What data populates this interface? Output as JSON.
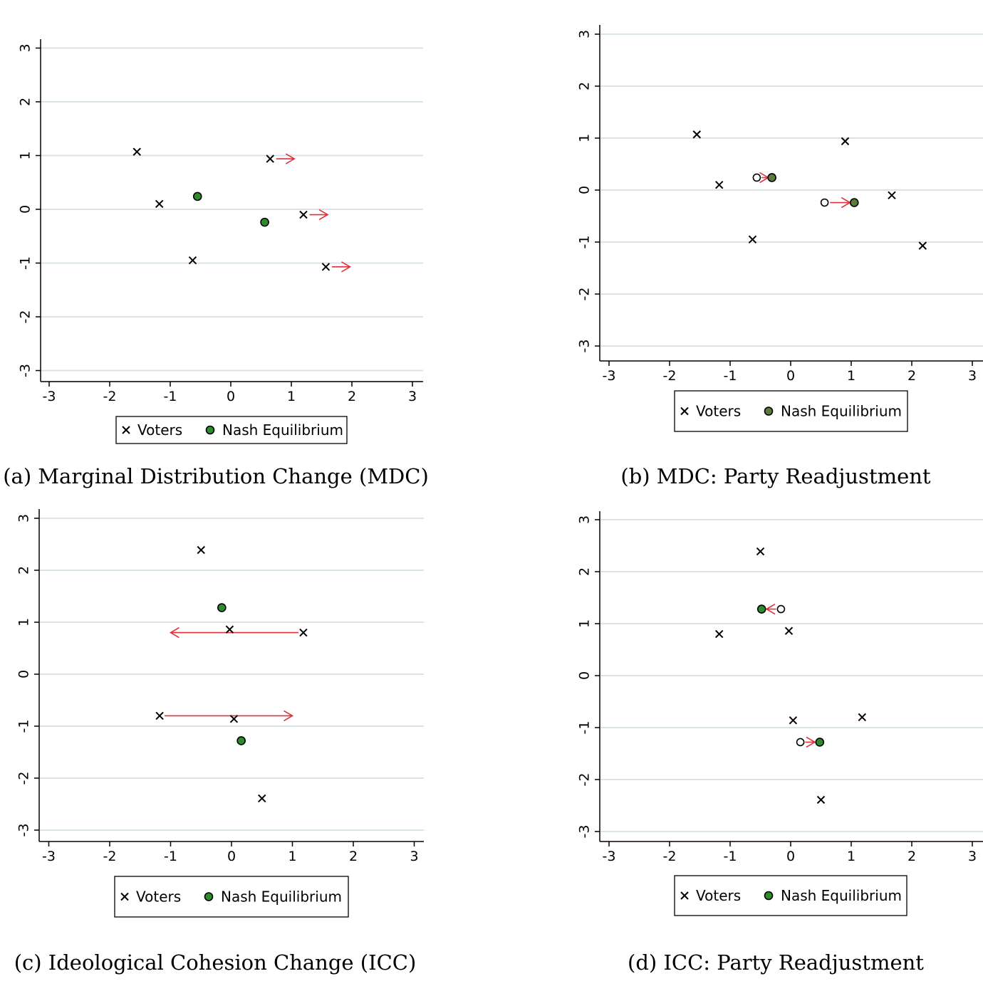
{
  "chart_data": [
    {
      "type": "scatter",
      "caption": "(a) Marginal Distribution Change (MDC)",
      "xlim": [
        -3,
        3
      ],
      "ylim": [
        -3,
        3
      ],
      "xticks": [
        -3,
        -2,
        -1,
        0,
        1,
        2,
        3
      ],
      "yticks": [
        -3,
        -2,
        -1,
        0,
        1,
        2,
        3
      ],
      "grid": "horizontal",
      "legend_position": "bottom",
      "legend": [
        {
          "marker": "x",
          "label": "Voters"
        },
        {
          "marker": "filled-circle",
          "label": "Nash Equilibrium"
        }
      ],
      "voters": [
        [
          -1.55,
          1.07
        ],
        [
          -1.18,
          0.1
        ],
        [
          -0.63,
          -0.95
        ],
        [
          0.65,
          0.94
        ],
        [
          1.2,
          -0.1
        ],
        [
          1.57,
          -1.07
        ]
      ],
      "equilibria": [
        [
          -0.55,
          0.24
        ],
        [
          0.56,
          -0.24
        ]
      ],
      "old_positions": [],
      "arrows": [
        [
          [
            0.75,
            0.94
          ],
          [
            1.05,
            0.94
          ]
        ],
        [
          [
            1.3,
            -0.1
          ],
          [
            1.6,
            -0.1
          ]
        ],
        [
          [
            1.67,
            -1.07
          ],
          [
            1.97,
            -1.07
          ]
        ]
      ],
      "colors": {
        "equilibrium": "#2e8b2e",
        "arrow": "#e0303a",
        "grid": "#d8e4e8"
      }
    },
    {
      "type": "scatter",
      "caption": "(b) MDC: Party Readjustment",
      "xlim": [
        -3,
        3
      ],
      "ylim": [
        -3,
        3
      ],
      "xticks": [
        -3,
        -2,
        -1,
        0,
        1,
        2,
        3
      ],
      "yticks": [
        -3,
        -2,
        -1,
        0,
        1,
        2,
        3
      ],
      "grid": "horizontal",
      "legend_position": "bottom",
      "legend": [
        {
          "marker": "x",
          "label": "Voters"
        },
        {
          "marker": "filled-circle",
          "label": "Nash Equilibrium"
        }
      ],
      "voters": [
        [
          -1.55,
          1.07
        ],
        [
          -1.18,
          0.1
        ],
        [
          -0.63,
          -0.95
        ],
        [
          0.9,
          0.94
        ],
        [
          1.67,
          -0.1
        ],
        [
          2.18,
          -1.07
        ]
      ],
      "equilibria": [
        [
          -0.31,
          0.24
        ],
        [
          1.05,
          -0.24
        ]
      ],
      "old_positions": [
        [
          -0.56,
          0.24
        ],
        [
          0.56,
          -0.24
        ]
      ],
      "arrows": [
        [
          [
            -0.48,
            0.24
          ],
          [
            -0.37,
            0.24
          ]
        ],
        [
          [
            0.65,
            -0.24
          ],
          [
            0.98,
            -0.24
          ]
        ]
      ],
      "colors": {
        "equilibrium": "#5a7d3a",
        "arrow": "#e0303a",
        "grid": "#d8e4e8"
      }
    },
    {
      "type": "scatter",
      "caption": "(c) Ideological Cohesion Change (ICC)",
      "xlim": [
        -3,
        3
      ],
      "ylim": [
        -3,
        3
      ],
      "xticks": [
        -3,
        -2,
        -1,
        0,
        1,
        2,
        3
      ],
      "yticks": [
        -3,
        -2,
        -1,
        0,
        1,
        2,
        3
      ],
      "grid": "horizontal",
      "legend_position": "bottom",
      "legend": [
        {
          "marker": "x",
          "label": "Voters"
        },
        {
          "marker": "filled-circle",
          "label": "Nash Equilibrium"
        }
      ],
      "voters": [
        [
          -0.5,
          2.39
        ],
        [
          -0.03,
          0.86
        ],
        [
          1.18,
          0.8
        ],
        [
          -1.18,
          -0.8
        ],
        [
          0.04,
          -0.86
        ],
        [
          0.5,
          -2.39
        ]
      ],
      "equilibria": [
        [
          -0.16,
          1.28
        ],
        [
          0.16,
          -1.28
        ]
      ],
      "old_positions": [],
      "arrows": [
        [
          [
            1.1,
            0.8
          ],
          [
            -1.0,
            0.8
          ]
        ],
        [
          [
            -1.1,
            -0.8
          ],
          [
            1.0,
            -0.8
          ]
        ]
      ],
      "colors": {
        "equilibrium": "#2e8b2e",
        "arrow": "#e0303a",
        "grid": "#d8e4e8"
      }
    },
    {
      "type": "scatter",
      "caption": "(d) ICC: Party Readjustment",
      "xlim": [
        -3,
        3
      ],
      "ylim": [
        -3,
        3
      ],
      "xticks": [
        -3,
        -2,
        -1,
        0,
        1,
        2,
        3
      ],
      "yticks": [
        -3,
        -2,
        -1,
        0,
        1,
        2,
        3
      ],
      "grid": "horizontal",
      "legend_position": "bottom",
      "legend": [
        {
          "marker": "x",
          "label": "Voters"
        },
        {
          "marker": "filled-circle",
          "label": "Nash Equilibrium"
        }
      ],
      "voters": [
        [
          -0.5,
          2.39
        ],
        [
          -0.03,
          0.86
        ],
        [
          -1.18,
          0.8
        ],
        [
          1.18,
          -0.8
        ],
        [
          0.04,
          -0.86
        ],
        [
          0.5,
          -2.39
        ]
      ],
      "equilibria": [
        [
          -0.48,
          1.28
        ],
        [
          0.48,
          -1.28
        ]
      ],
      "old_positions": [
        [
          -0.16,
          1.28
        ],
        [
          0.16,
          -1.28
        ]
      ],
      "arrows": [
        [
          [
            -0.24,
            1.28
          ],
          [
            -0.4,
            1.28
          ]
        ],
        [
          [
            0.24,
            -1.28
          ],
          [
            0.4,
            -1.28
          ]
        ]
      ],
      "colors": {
        "equilibrium": "#2e8b2e",
        "arrow": "#e0303a",
        "grid": "#d8e4e8"
      }
    }
  ]
}
